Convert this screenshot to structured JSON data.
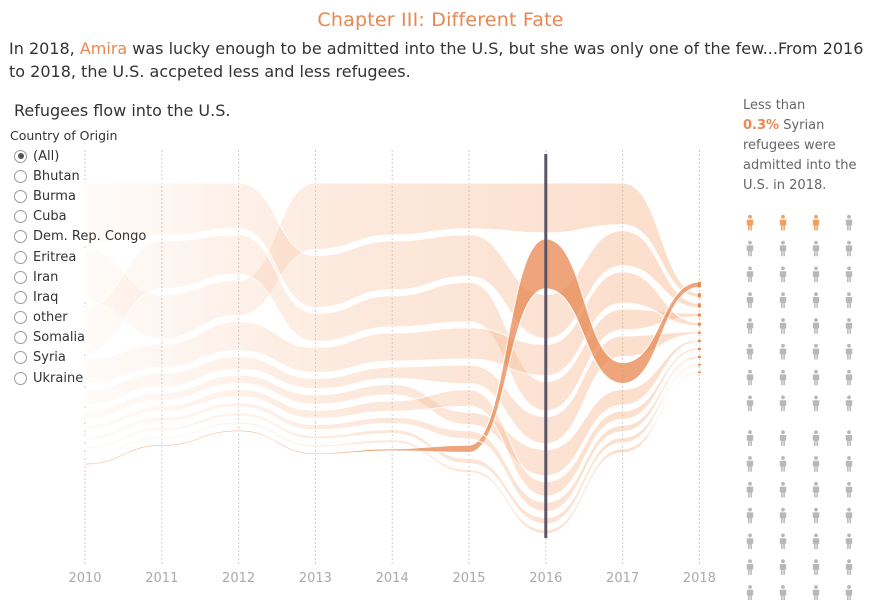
{
  "header": {
    "title": "Chapter III: Different Fate",
    "intro_before": "In 2018, ",
    "intro_name": "Amira",
    "intro_after": " was lucky enough to be admitted into the U.S, but she was only one of the few...From 2016 to 2018, the U.S. accpeted less and less refugees."
  },
  "chart_title": "Refugees flow into the U.S.",
  "filter": {
    "title": "Country of Origin",
    "selected": "(All)",
    "options": [
      "(All)",
      "Bhutan",
      "Burma",
      "Cuba",
      "Dem. Rep. Congo",
      "Eritrea",
      "Iran",
      "Iraq",
      "other",
      "Somalia",
      "Syria",
      "Ukraine"
    ]
  },
  "note": {
    "line1": "Less than",
    "pct": "0.3%",
    "rest": " Syrian refugees were admitted into the U.S. in 2018."
  },
  "pictogram": {
    "columns": 4,
    "rows": 16,
    "highlighted": 3,
    "highlight_color": "#F0A060",
    "base_color": "#B8B8B8"
  },
  "colors": {
    "accent": "#E8874F",
    "flow_band": "#F7B48A",
    "syria_band": "#E8874F",
    "highlight_line": "#5A5566",
    "gridline": "#CCCCCC"
  },
  "chart_data": {
    "type": "area",
    "title": "Refugees flow into the U.S.",
    "x": [
      2010,
      2011,
      2012,
      2013,
      2014,
      2015,
      2016,
      2017,
      2018
    ],
    "xlabel": "",
    "ylabel": "",
    "highlight_year": 2016,
    "series_note": "flow ribbons per country of origin, stacked by rank each year",
    "series": [
      {
        "name": "Iraq",
        "values": [
          50,
          42,
          34,
          64,
          50,
          44,
          48,
          40,
          4
        ]
      },
      {
        "name": "Burma",
        "values": [
          58,
          50,
          44,
          50,
          47,
          40,
          42,
          34,
          4
        ]
      },
      {
        "name": "Bhutan",
        "values": [
          44,
          46,
          38,
          27,
          30,
          38,
          28,
          20,
          3
        ]
      },
      {
        "name": "Somalia",
        "values": [
          24,
          22,
          28,
          24,
          27,
          30,
          30,
          30,
          3
        ]
      },
      {
        "name": "Cuba",
        "values": [
          14,
          13,
          12,
          10,
          11,
          18,
          26,
          20,
          2
        ]
      },
      {
        "name": "Iran",
        "values": [
          8,
          7,
          8,
          9,
          10,
          12,
          25,
          15,
          2
        ]
      },
      {
        "name": "Dem. Rep. Congo",
        "values": [
          5,
          5,
          7,
          8,
          10,
          16,
          14,
          8,
          2
        ]
      },
      {
        "name": "Eritrea",
        "values": [
          3,
          3,
          3,
          3,
          4,
          5,
          6,
          5,
          1
        ]
      },
      {
        "name": "Ukraine",
        "values": [
          2,
          2,
          2,
          2,
          3,
          3,
          4,
          4,
          1
        ]
      },
      {
        "name": "Syria",
        "values": [
          0,
          1,
          1,
          1,
          2,
          7,
          48,
          20,
          5
        ]
      },
      {
        "name": "other",
        "values": [
          4,
          4,
          4,
          5,
          6,
          8,
          9,
          6,
          2
        ]
      }
    ]
  }
}
